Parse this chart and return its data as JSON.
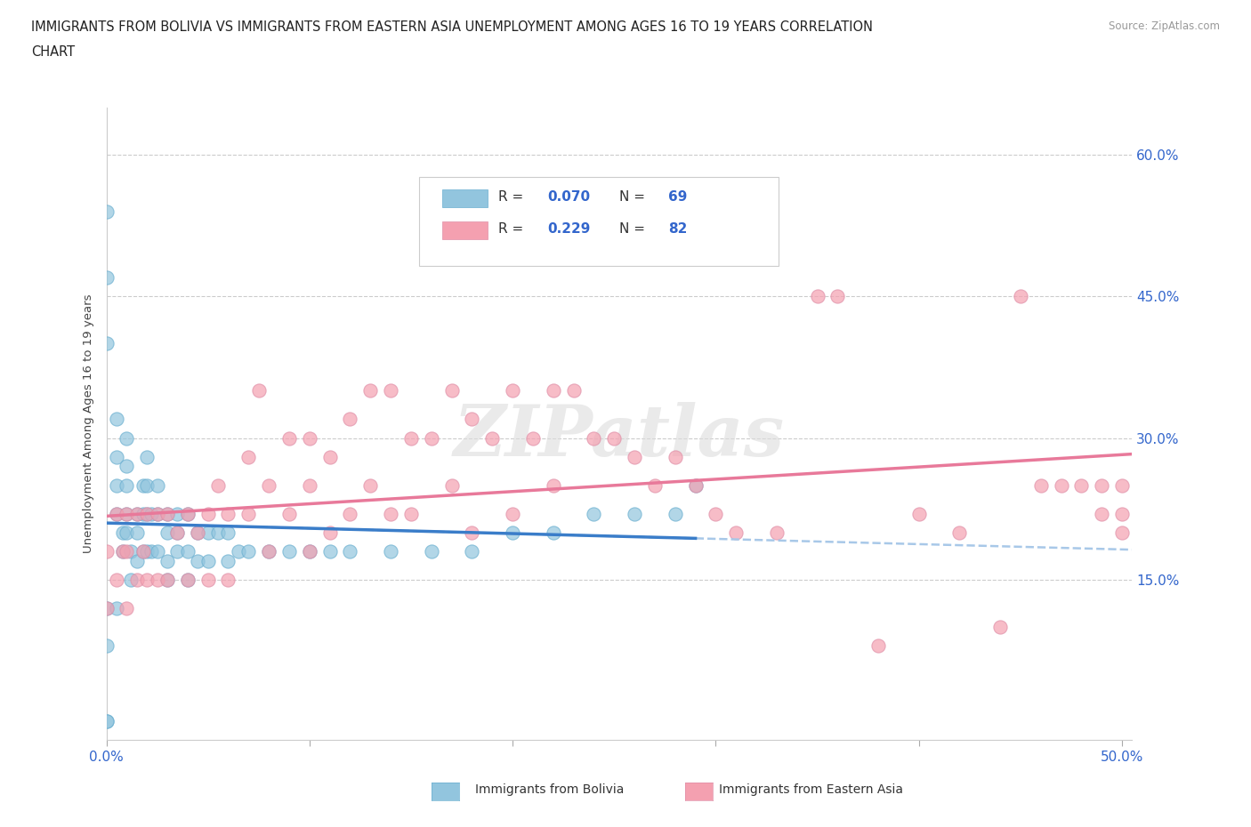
{
  "title_line1": "IMMIGRANTS FROM BOLIVIA VS IMMIGRANTS FROM EASTERN ASIA UNEMPLOYMENT AMONG AGES 16 TO 19 YEARS CORRELATION",
  "title_line2": "CHART",
  "source": "Source: ZipAtlas.com",
  "ylabel": "Unemployment Among Ages 16 to 19 years",
  "xlim": [
    0.0,
    0.505
  ],
  "ylim": [
    -0.02,
    0.65
  ],
  "xtick_positions": [
    0.0,
    0.1,
    0.2,
    0.3,
    0.4,
    0.5
  ],
  "xticklabels": [
    "0.0%",
    "",
    "",
    "",
    "",
    "50.0%"
  ],
  "ytick_positions": [
    0.15,
    0.3,
    0.45,
    0.6
  ],
  "ytick_labels": [
    "15.0%",
    "30.0%",
    "45.0%",
    "60.0%"
  ],
  "bolivia_color": "#92C5DE",
  "eastern_asia_color": "#F4A0B0",
  "bolivia_line_color": "#3A7DC9",
  "eastern_asia_line_color": "#E8799A",
  "bolivia_dash_color": "#A8C8E8",
  "watermark_text": "ZIPatlas",
  "grid_color": "#CCCCCC",
  "bolivia_x": [
    0.0,
    0.0,
    0.0,
    0.0,
    0.0,
    0.005,
    0.005,
    0.005,
    0.005,
    0.008,
    0.008,
    0.01,
    0.01,
    0.01,
    0.01,
    0.01,
    0.012,
    0.012,
    0.015,
    0.015,
    0.015,
    0.018,
    0.018,
    0.018,
    0.02,
    0.02,
    0.02,
    0.02,
    0.022,
    0.022,
    0.025,
    0.025,
    0.025,
    0.03,
    0.03,
    0.03,
    0.03,
    0.035,
    0.035,
    0.035,
    0.04,
    0.04,
    0.04,
    0.045,
    0.045,
    0.05,
    0.05,
    0.055,
    0.06,
    0.06,
    0.065,
    0.07,
    0.08,
    0.09,
    0.1,
    0.11,
    0.12,
    0.14,
    0.16,
    0.18,
    0.2,
    0.22,
    0.24,
    0.26,
    0.28,
    0.0,
    0.0,
    0.005,
    0.29
  ],
  "bolivia_y": [
    0.54,
    0.47,
    0.4,
    0.0,
    0.0,
    0.32,
    0.28,
    0.25,
    0.22,
    0.2,
    0.18,
    0.3,
    0.27,
    0.25,
    0.22,
    0.2,
    0.18,
    0.15,
    0.22,
    0.2,
    0.17,
    0.25,
    0.22,
    0.18,
    0.28,
    0.25,
    0.22,
    0.18,
    0.22,
    0.18,
    0.25,
    0.22,
    0.18,
    0.22,
    0.2,
    0.17,
    0.15,
    0.22,
    0.2,
    0.18,
    0.22,
    0.18,
    0.15,
    0.2,
    0.17,
    0.2,
    0.17,
    0.2,
    0.2,
    0.17,
    0.18,
    0.18,
    0.18,
    0.18,
    0.18,
    0.18,
    0.18,
    0.18,
    0.18,
    0.18,
    0.2,
    0.2,
    0.22,
    0.22,
    0.22,
    0.12,
    0.08,
    0.12,
    0.25
  ],
  "eastern_asia_x": [
    0.0,
    0.0,
    0.005,
    0.005,
    0.008,
    0.01,
    0.01,
    0.01,
    0.015,
    0.015,
    0.018,
    0.02,
    0.02,
    0.025,
    0.025,
    0.03,
    0.03,
    0.035,
    0.04,
    0.04,
    0.045,
    0.05,
    0.05,
    0.055,
    0.06,
    0.06,
    0.07,
    0.07,
    0.075,
    0.08,
    0.08,
    0.09,
    0.09,
    0.1,
    0.1,
    0.1,
    0.11,
    0.11,
    0.12,
    0.12,
    0.13,
    0.13,
    0.14,
    0.14,
    0.15,
    0.15,
    0.16,
    0.17,
    0.17,
    0.18,
    0.18,
    0.19,
    0.2,
    0.2,
    0.21,
    0.22,
    0.22,
    0.23,
    0.24,
    0.25,
    0.26,
    0.27,
    0.28,
    0.29,
    0.3,
    0.31,
    0.33,
    0.35,
    0.36,
    0.38,
    0.4,
    0.42,
    0.44,
    0.45,
    0.46,
    0.47,
    0.48,
    0.49,
    0.49,
    0.5,
    0.5,
    0.5
  ],
  "eastern_asia_y": [
    0.18,
    0.12,
    0.22,
    0.15,
    0.18,
    0.22,
    0.18,
    0.12,
    0.22,
    0.15,
    0.18,
    0.22,
    0.15,
    0.22,
    0.15,
    0.22,
    0.15,
    0.2,
    0.22,
    0.15,
    0.2,
    0.22,
    0.15,
    0.25,
    0.22,
    0.15,
    0.28,
    0.22,
    0.35,
    0.25,
    0.18,
    0.3,
    0.22,
    0.3,
    0.25,
    0.18,
    0.28,
    0.2,
    0.32,
    0.22,
    0.35,
    0.25,
    0.35,
    0.22,
    0.3,
    0.22,
    0.3,
    0.35,
    0.25,
    0.32,
    0.2,
    0.3,
    0.35,
    0.22,
    0.3,
    0.35,
    0.25,
    0.35,
    0.3,
    0.3,
    0.28,
    0.25,
    0.28,
    0.25,
    0.22,
    0.2,
    0.2,
    0.45,
    0.45,
    0.08,
    0.22,
    0.2,
    0.1,
    0.45,
    0.25,
    0.25,
    0.25,
    0.25,
    0.22,
    0.25,
    0.22,
    0.2
  ]
}
